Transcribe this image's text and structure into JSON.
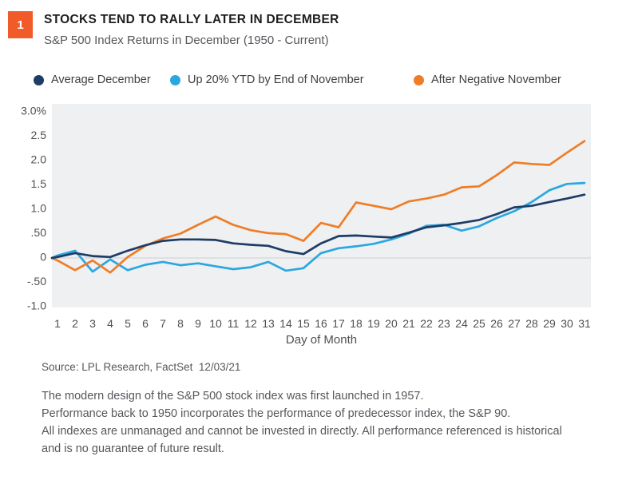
{
  "header": {
    "badge": "1",
    "badge_color": "#f15b29",
    "title": "STOCKS TEND TO RALLY LATER IN DECEMBER",
    "subtitle": "S&P 500 Index Returns in December (1950 - Current)"
  },
  "legend": {
    "items": [
      {
        "label": "Average December",
        "color": "#1d3c66"
      },
      {
        "label": "Up 20% YTD by End of November",
        "color": "#2ba7e0"
      },
      {
        "label": "After Negative November",
        "color": "#ef7d27"
      }
    ]
  },
  "chart_data": {
    "type": "line",
    "title": "S&P 500 Index Returns in December (1950 - Current)",
    "xlabel": "Day of Month",
    "ylabel": "",
    "x": [
      1,
      2,
      3,
      4,
      5,
      6,
      7,
      8,
      9,
      10,
      11,
      12,
      13,
      14,
      15,
      16,
      17,
      18,
      19,
      20,
      21,
      22,
      23,
      24,
      25,
      26,
      27,
      28,
      29,
      30,
      31
    ],
    "xlim": [
      1,
      31
    ],
    "ylim": [
      -1.0,
      3.0
    ],
    "grid": false,
    "zero_line": true,
    "ytick_values": [
      3.0,
      2.5,
      2.0,
      1.5,
      1.0,
      0.5,
      0,
      -0.5,
      -1.0
    ],
    "ytick_labels": [
      "3.0%",
      "2.5",
      "2.0",
      "1.5",
      "1.0",
      ".50",
      "0",
      "-.50",
      "-1.0"
    ],
    "legend_position": "top",
    "series": [
      {
        "name": "Average December",
        "color": "#1d3c66",
        "z": 3,
        "values": [
          0.02,
          0.1,
          0.04,
          0.02,
          0.15,
          0.26,
          0.35,
          0.38,
          0.38,
          0.37,
          0.3,
          0.27,
          0.25,
          0.14,
          0.08,
          0.3,
          0.45,
          0.46,
          0.44,
          0.42,
          0.52,
          0.63,
          0.67,
          0.72,
          0.78,
          0.9,
          1.04,
          1.07,
          1.15,
          1.22,
          1.3
        ]
      },
      {
        "name": "Up 20% YTD by End of November",
        "color": "#2ba7e0",
        "z": 1,
        "values": [
          0.05,
          0.15,
          -0.28,
          -0.03,
          -0.25,
          -0.14,
          -0.08,
          -0.15,
          -0.11,
          -0.17,
          -0.23,
          -0.19,
          -0.08,
          -0.26,
          -0.21,
          0.1,
          0.2,
          0.24,
          0.29,
          0.38,
          0.5,
          0.66,
          0.68,
          0.56,
          0.65,
          0.82,
          0.96,
          1.15,
          1.39,
          1.52,
          1.54
        ]
      },
      {
        "name": "After Negative November",
        "color": "#ef7d27",
        "z": 2,
        "values": [
          -0.05,
          -0.25,
          -0.05,
          -0.3,
          0.02,
          0.25,
          0.4,
          0.5,
          0.68,
          0.85,
          0.68,
          0.57,
          0.51,
          0.49,
          0.35,
          0.72,
          0.63,
          1.14,
          1.07,
          1.0,
          1.16,
          1.22,
          1.3,
          1.45,
          1.47,
          1.7,
          1.96,
          1.93,
          1.91,
          2.16,
          2.4
        ]
      }
    ]
  },
  "source": "Source: LPL Research, FactSet  12/03/21",
  "footnotes": [
    "The modern design of the S&P 500 stock index was first launched in 1957.",
    "Performance back to 1950 incorporates the performance of predecessor index, the S&P 90.",
    "All indexes are unmanaged and cannot be invested in directly. All performance referenced is historical and is no guarantee of future result."
  ],
  "colors": {
    "plot_background": "#eff0f2",
    "zero_line": "#d8d9da",
    "axis_text": "#4e5054"
  }
}
